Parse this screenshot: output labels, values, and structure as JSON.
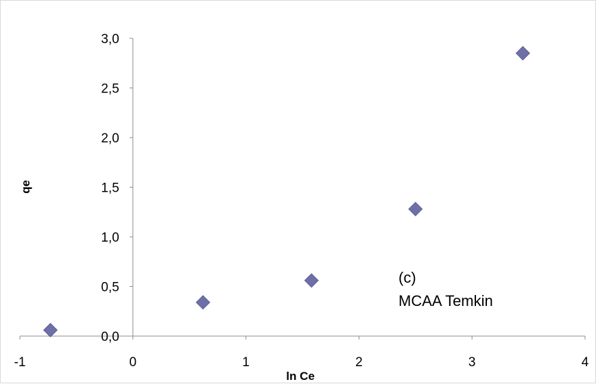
{
  "chart_data": {
    "type": "scatter",
    "title": "",
    "xlabel": "ln Ce",
    "ylabel": "qe",
    "xlim": [
      -1,
      4
    ],
    "ylim": [
      0,
      3
    ],
    "x_ticks": [
      "-1",
      "0",
      "1",
      "2",
      "3",
      "4"
    ],
    "y_ticks": [
      "0,0",
      "0,5",
      "1,0",
      "1,5",
      "2,0",
      "2,5",
      "3,0"
    ],
    "grid": false,
    "legend": "none",
    "marker": "diamond",
    "marker_color": "#6f6fa8",
    "series": [
      {
        "points": [
          {
            "x": -0.73,
            "y": 0.06
          },
          {
            "x": 0.62,
            "y": 0.34
          },
          {
            "x": 1.58,
            "y": 0.56
          },
          {
            "x": 2.5,
            "y": 1.28
          },
          {
            "x": 3.45,
            "y": 2.85
          }
        ]
      }
    ],
    "annotation": [
      "(c)",
      "MCAA Temkin"
    ]
  }
}
